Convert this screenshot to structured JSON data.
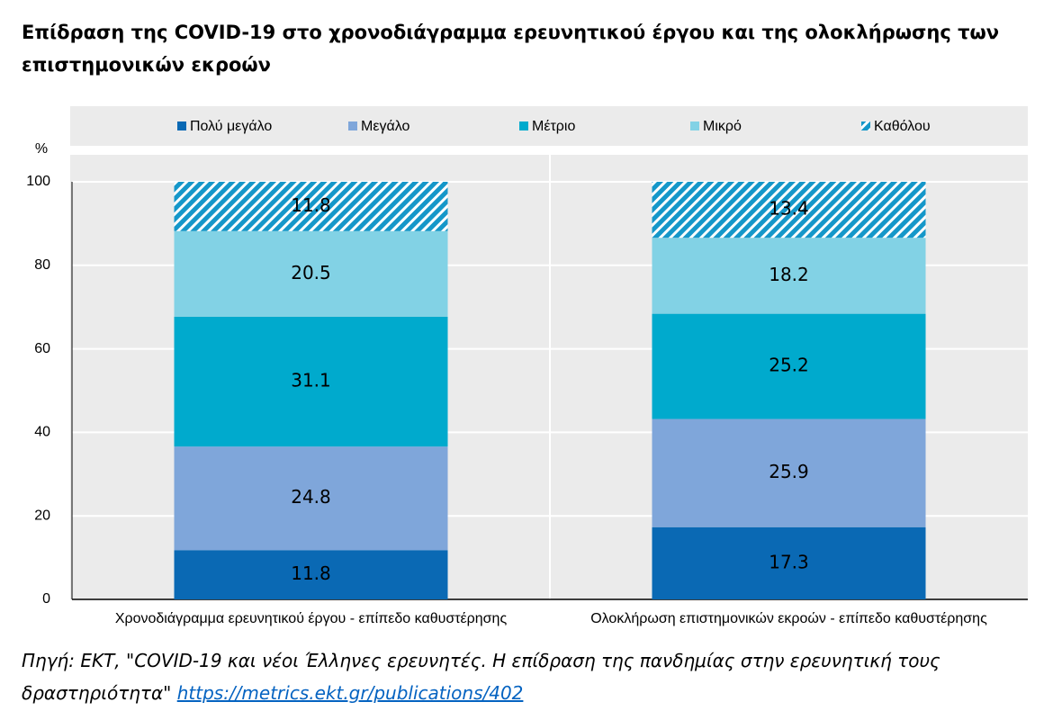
{
  "chart_data": {
    "type": "stacked-bar",
    "title": "Επίδραση της COVID-19 στο χρονοδιάγραμμα ερευνητικού έργου και της ολοκλήρωσης των επιστημονικών εκροών",
    "y_label": "%",
    "categories": [
      "Χρονοδιάγραμμα ερευνητικού έργου - επίπεδο καθυστέρησης",
      "Ολοκλήρωση επιστημονικών εκροών - επίπεδο καθυστέρησης"
    ],
    "series": [
      {
        "name": "Πολύ μεγάλο",
        "color": "#0a69b4",
        "values": [
          11.8,
          17.3
        ]
      },
      {
        "name": "Μεγάλο",
        "color": "#7fa6da",
        "values": [
          24.8,
          25.9
        ]
      },
      {
        "name": "Μέτριο",
        "color": "#00aacd",
        "values": [
          31.1,
          25.2
        ]
      },
      {
        "name": "Μικρό",
        "color": "#82d2e5",
        "values": [
          20.5,
          18.2
        ]
      },
      {
        "name": "Καθόλου",
        "color": "#1597c9",
        "hatch": true,
        "values": [
          11.8,
          13.4
        ]
      }
    ],
    "ylim": [
      0,
      100
    ],
    "yticks": [
      0,
      20,
      40,
      60,
      80,
      100
    ],
    "grid": true,
    "source_text": "Πηγή: ΕΚΤ, \"COVID-19 και νέοι Έλληνες ερευνητές. Η επίδραση της πανδημίας στην ερευνητική τους δραστηριότητα\"",
    "source_link": "https://metrics.ekt.gr/publications/402"
  }
}
